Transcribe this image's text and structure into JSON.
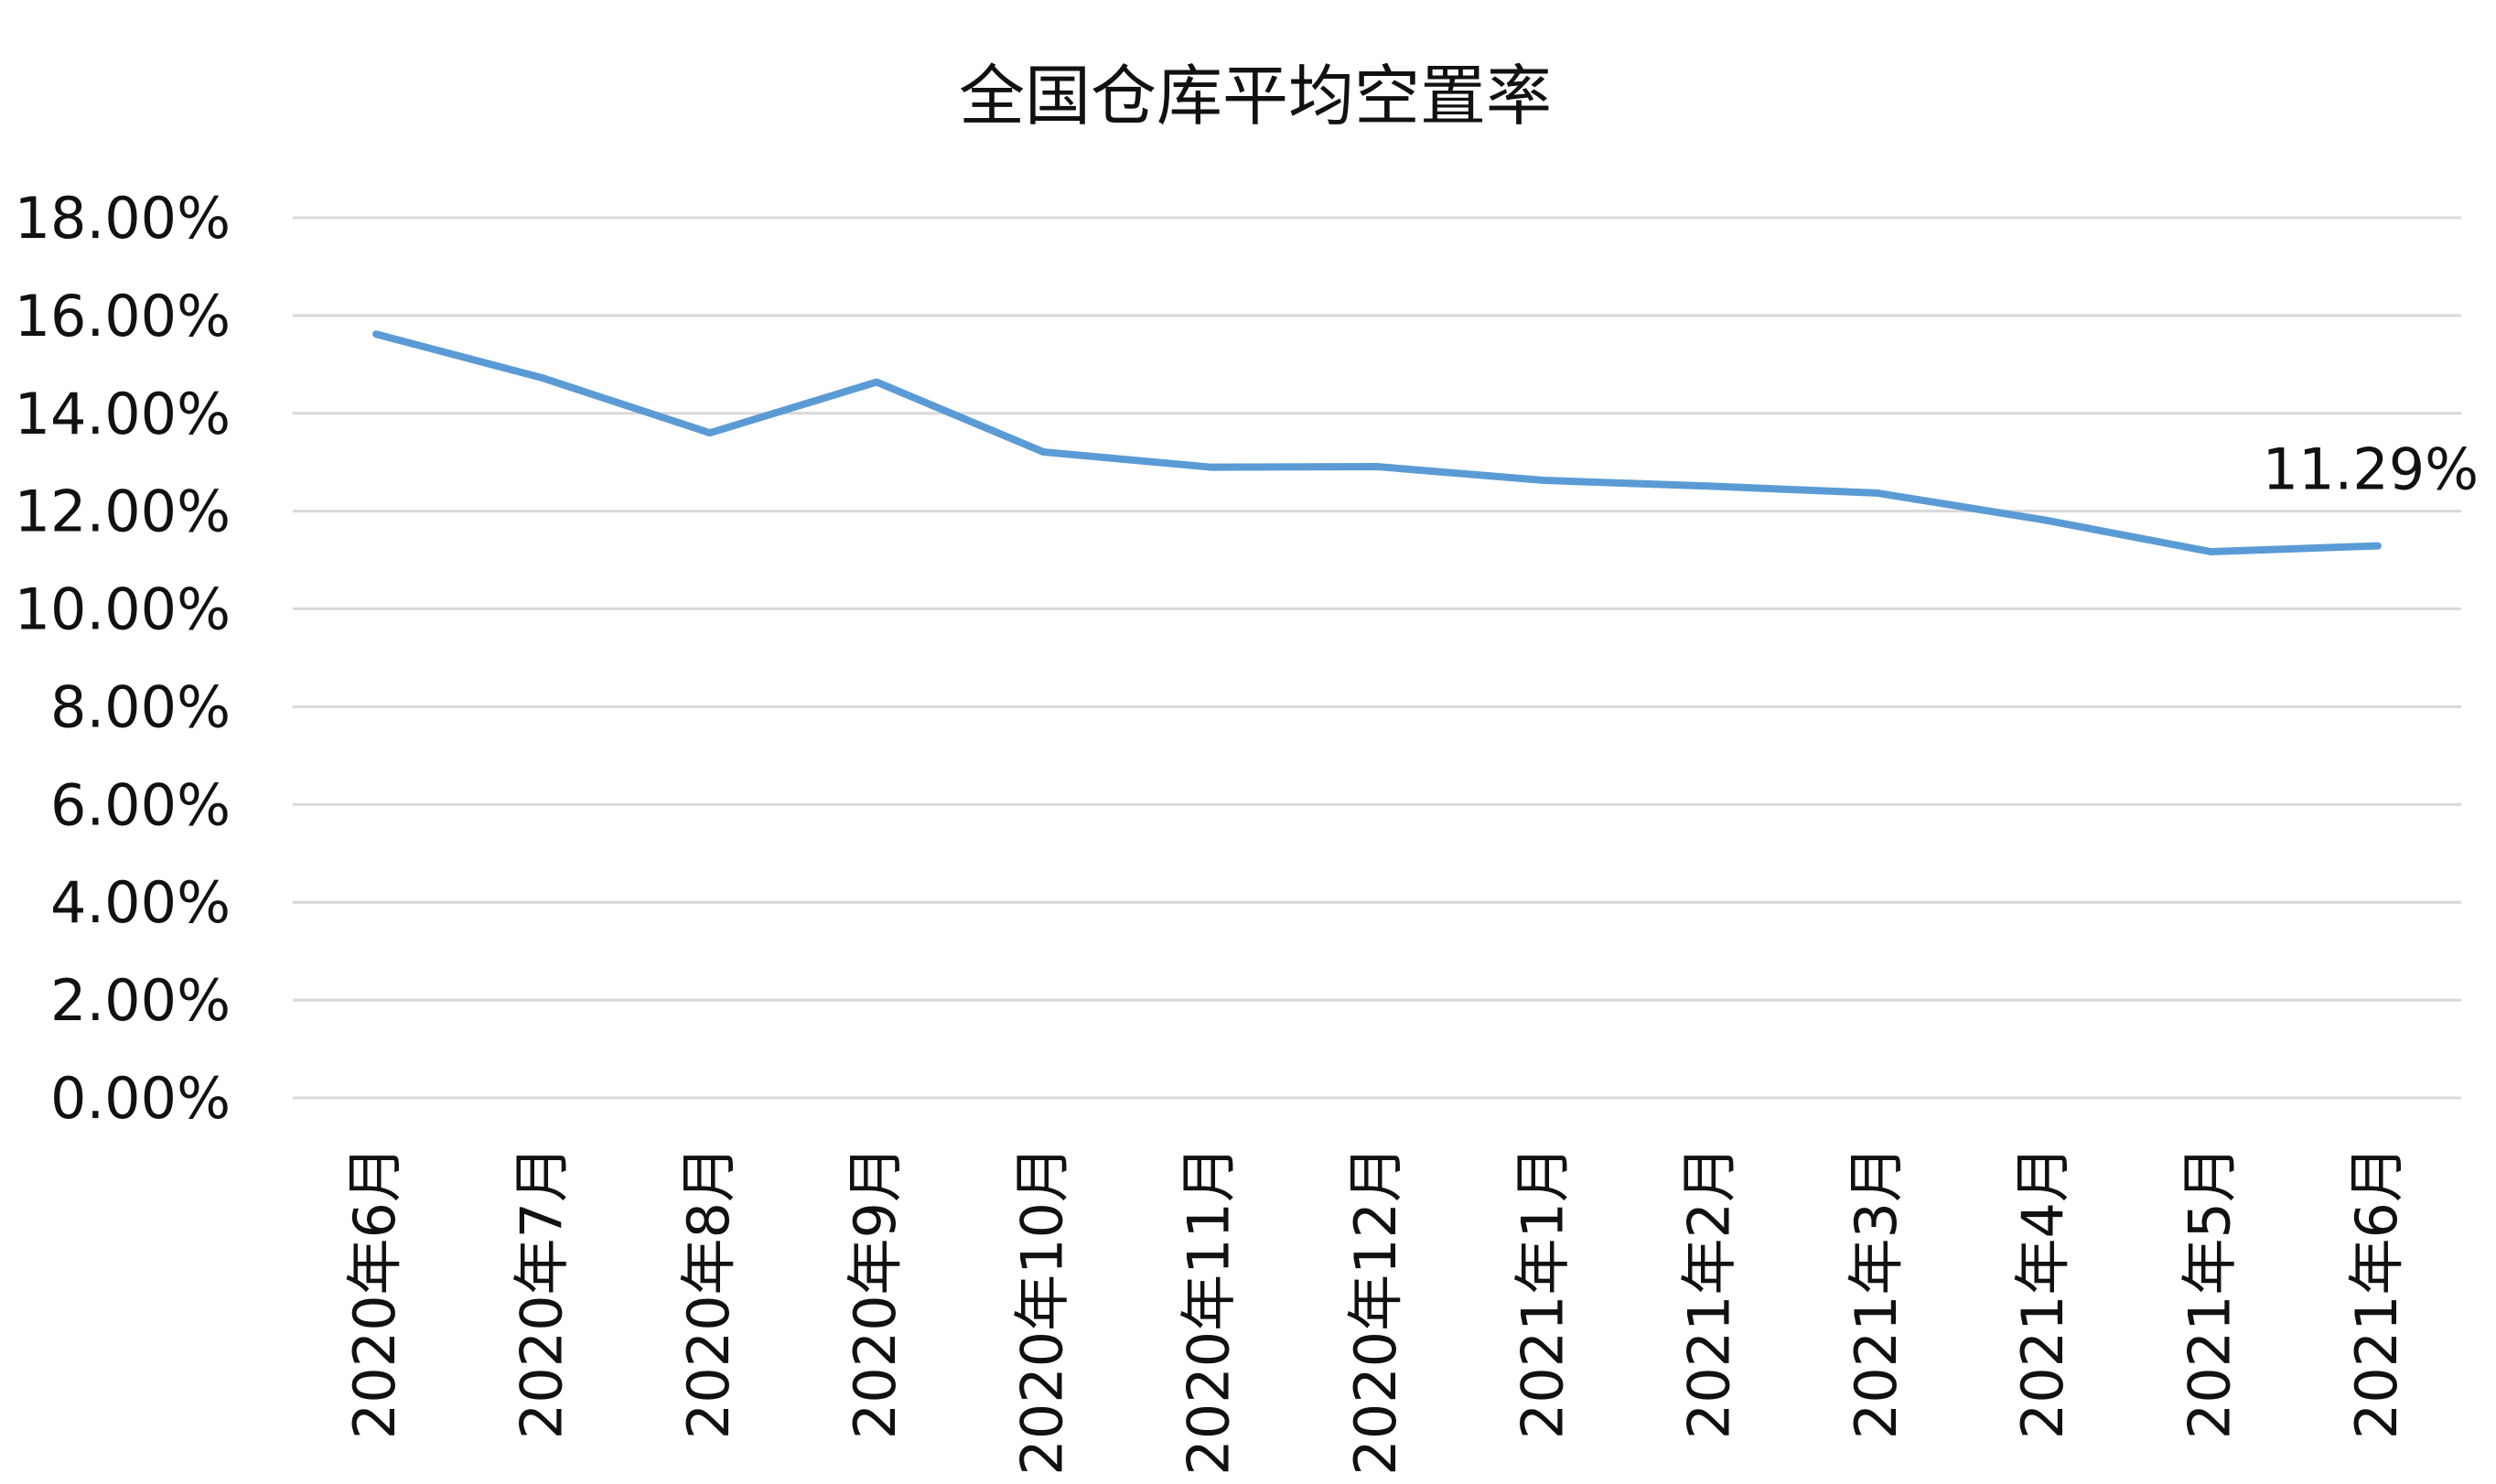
{
  "chart_data": {
    "type": "line",
    "title": "全国仓库平均空置率",
    "xlabel": "",
    "ylabel": "",
    "categories": [
      "2020年6月",
      "2020年7月",
      "2020年8月",
      "2020年9月",
      "2020年10月",
      "2020年11月",
      "2020年12月",
      "2021年1月",
      "2021年2月",
      "2021年3月",
      "2021年4月",
      "2021年5月",
      "2021年6月"
    ],
    "series": [
      {
        "values": [
          15.62,
          14.72,
          13.6,
          14.64,
          13.21,
          12.9,
          12.91,
          12.63,
          12.51,
          12.37,
          11.82,
          11.17,
          11.29
        ],
        "color": "#5b9bd5"
      }
    ],
    "ylim": [
      0,
      18
    ],
    "yticks": [
      {
        "value": 18,
        "label": "18.00%"
      },
      {
        "value": 16,
        "label": "16.00%"
      },
      {
        "value": 14,
        "label": "14.00%"
      },
      {
        "value": 12,
        "label": "12.00%"
      },
      {
        "value": 10,
        "label": "10.00%"
      },
      {
        "value": 8,
        "label": "8.00%"
      },
      {
        "value": 6,
        "label": "6.00%"
      },
      {
        "value": 4,
        "label": "4.00%"
      },
      {
        "value": 2,
        "label": "2.00%"
      },
      {
        "value": 0,
        "label": "0.00%"
      }
    ],
    "grid": true,
    "legend": "none",
    "data_labels": [
      {
        "index": 12,
        "label": "11.29%"
      }
    ]
  }
}
